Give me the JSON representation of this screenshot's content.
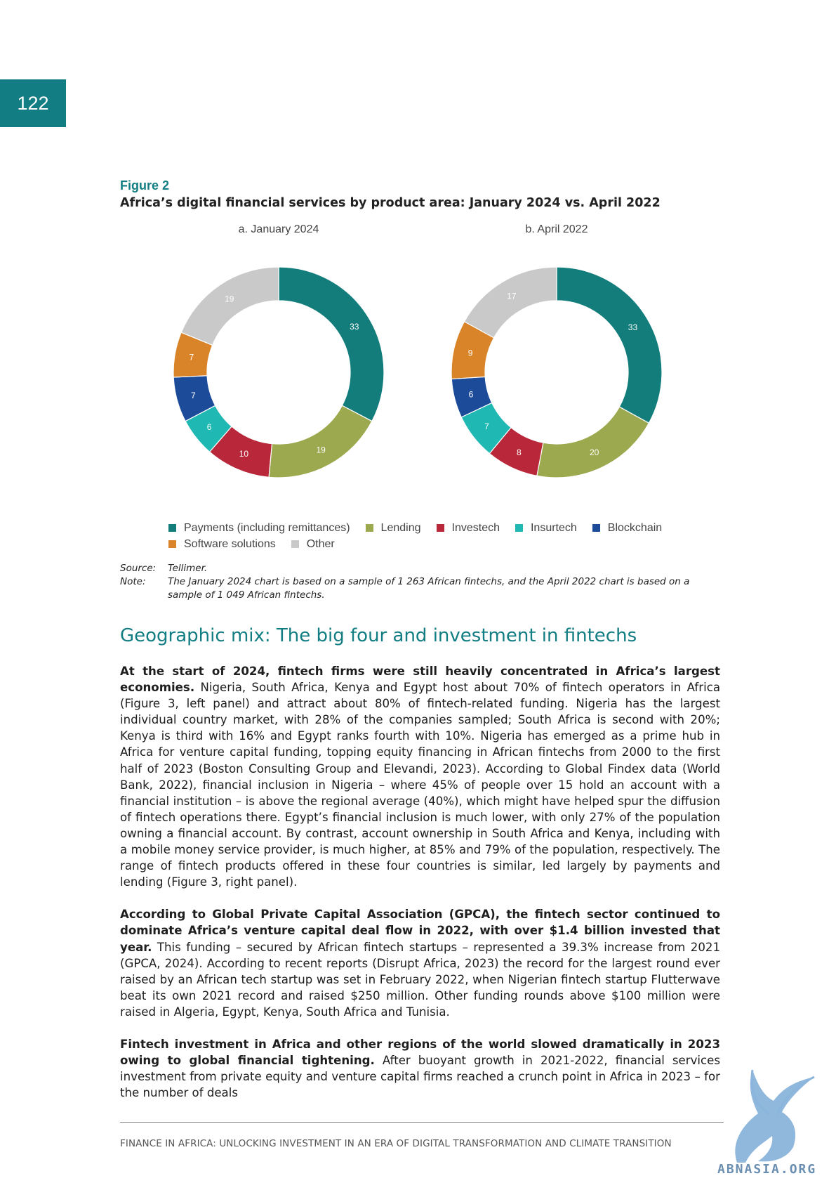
{
  "page_number": "122",
  "figure": {
    "label": "Figure 2",
    "title": "Africa’s digital financial services by product area: January 2024 vs. April 2022",
    "panels": [
      {
        "title": "a. January 2024"
      },
      {
        "title": "b. April 2022"
      }
    ],
    "source_label": "Source:",
    "source_text": "Tellimer.",
    "note_label": "Note:",
    "note_text": "The January 2024 chart is based on a sample of 1 263 African fintechs, and the April 2022 chart is based on a sample of 1 049 African fintechs."
  },
  "chart_data": [
    {
      "type": "pie",
      "title": "a. January 2024",
      "categories": [
        "Payments (including remittances)",
        "Lending",
        "Investech",
        "Insurtech",
        "Blockchain",
        "Software solutions",
        "Other"
      ],
      "values": [
        33,
        19,
        10,
        6,
        7,
        7,
        19
      ]
    },
    {
      "type": "pie",
      "title": "b. April 2022",
      "categories": [
        "Payments (including remittances)",
        "Lending",
        "Investech",
        "Insurtech",
        "Blockchain",
        "Software solutions",
        "Other"
      ],
      "values": [
        33,
        20,
        8,
        7,
        6,
        9,
        17
      ]
    }
  ],
  "legend": {
    "row1": [
      {
        "label": "Payments (including remittances)",
        "color": "#127d7b"
      },
      {
        "label": "Lending",
        "color": "#9ca94e"
      },
      {
        "label": "Investech",
        "color": "#b8283a"
      },
      {
        "label": "Insurtech",
        "color": "#1fb8b2"
      },
      {
        "label": "Blockchain",
        "color": "#1c4b9a"
      }
    ],
    "row2": [
      {
        "label": "Software solutions",
        "color": "#d98429"
      },
      {
        "label": "Other",
        "color": "#c9c9c9"
      }
    ]
  },
  "section": {
    "heading": "Geographic mix: The big four and investment in fintechs",
    "p1_bold": "At the start of 2024, fintech firms were still heavily concentrated in Africa’s largest economies.",
    "p1_text": " Nigeria, South Africa, Kenya and Egypt host about 70% of fintech operators in Africa (Figure 3, left panel) and attract about 80% of fintech-related funding. Nigeria has the largest individual country market, with 28% of the companies sampled; South Africa is second with 20%; Kenya is third with 16% and Egypt ranks fourth with 10%. Nigeria has emerged as a prime hub in Africa for venture capital funding, topping equity financing in African fintechs from 2000 to the first half of 2023 (Boston Consulting Group and Elevandi, 2023). According to Global Findex data (World Bank, 2022), financial inclusion in Nigeria – where 45% of people over 15 hold an account with a financial institution – is above the regional average (40%), which might have helped spur the diffusion of fintech operations there. Egypt’s financial inclusion is much lower, with only 27% of the population owning a financial account. By contrast, account ownership in South Africa and Kenya, including with a mobile money service provider, is much higher, at 85% and 79% of the population, respectively. The range of fintech products offered in these four countries is similar, led largely by payments and lending (Figure 3, right panel).",
    "p2_bold": "According to Global Private Capital Association (GPCA), the fintech sector continued to dominate Africa’s venture capital deal flow in 2022, with over $1.4 billion invested that year.",
    "p2_text": " This funding – secured by African fintech startups – represented a 39.3% increase from 2021 (GPCA, 2024). According to recent reports (Disrupt Africa, 2023) the record for the largest round ever raised by an African tech startup was set in February 2022, when Nigerian fintech startup Flutterwave beat its own 2021 record and raised $250 million. Other funding rounds above $100 million were raised in Algeria, Egypt, Kenya, South Africa and Tunisia.",
    "p3_bold": "Fintech investment in Africa and other regions of the world slowed dramatically in 2023 owing to global financial tightening.",
    "p3_text": " After buoyant growth in 2021-2022, financial services investment from private equity and venture capital firms reached a crunch point in Africa in 2023 – for the number of deals"
  },
  "footer": {
    "text": "FINANCE IN AFRICA: UNLOCKING INVESTMENT IN AN ERA OF DIGITAL TRANSFORMATION AND CLIMATE TRANSITION"
  },
  "watermark": {
    "text": "ABNASIA.ORG",
    "color": "#6b8fb0"
  }
}
